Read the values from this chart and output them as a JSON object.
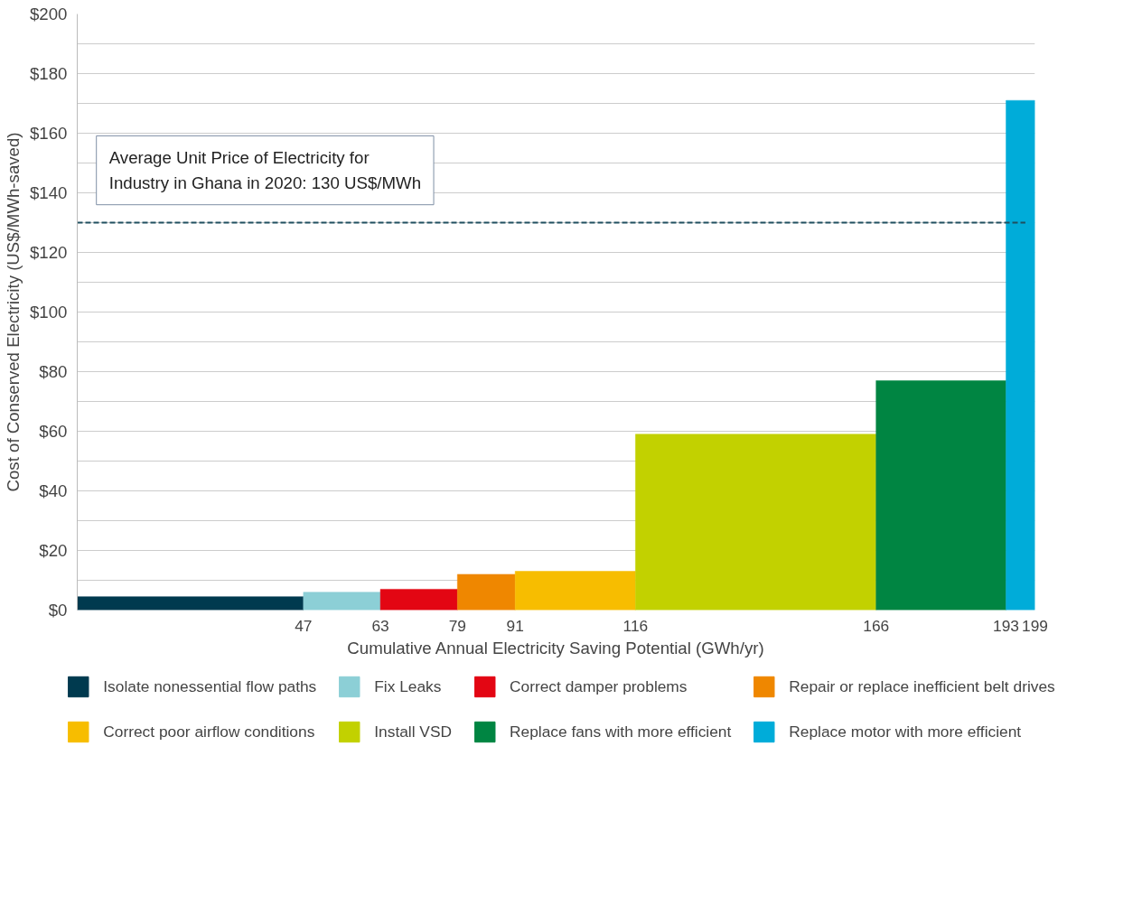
{
  "chart_data": {
    "type": "histogram",
    "xlabel": "Cumulative Annual Electricity Saving Potential (GWh/yr)",
    "ylabel": "Cost of Conserved Electricity (US$/MWh-saved)",
    "bins": [
      0,
      47,
      63,
      79,
      91,
      116,
      166,
      193,
      199
    ],
    "xlim": [
      0,
      199
    ],
    "xticks": [
      47,
      63,
      79,
      91,
      116,
      166,
      193,
      199
    ],
    "ylim": [
      0,
      200
    ],
    "yticks": [
      {
        "value": 0,
        "label": "$0"
      },
      {
        "value": 10,
        "label": null
      },
      {
        "value": 20,
        "label": "$20"
      },
      {
        "value": 30,
        "label": null
      },
      {
        "value": 40,
        "label": "$40"
      },
      {
        "value": 50,
        "label": null
      },
      {
        "value": 60,
        "label": "$60"
      },
      {
        "value": 70,
        "label": null
      },
      {
        "value": 80,
        "label": "$80"
      },
      {
        "value": 90,
        "label": null
      },
      {
        "value": 100,
        "label": "$100"
      },
      {
        "value": 110,
        "label": null
      },
      {
        "value": 120,
        "label": "$120"
      },
      {
        "value": 130,
        "label": null
      },
      {
        "value": 140,
        "label": "$140"
      },
      {
        "value": 150,
        "label": null
      },
      {
        "value": 160,
        "label": "$160"
      },
      {
        "value": 170,
        "label": null
      },
      {
        "value": 180,
        "label": "$180"
      },
      {
        "value": 190,
        "label": null
      },
      {
        "value": 200,
        "label": "$200"
      }
    ],
    "grid": "y",
    "legend": "bottom",
    "series": [
      {
        "name": "Isolate nonessential flow paths",
        "color": "#003a4f",
        "values": [
          4.5,
          null,
          null,
          null,
          null,
          null,
          null,
          null
        ]
      },
      {
        "name": "Fix Leaks",
        "color": "#8ccfd6",
        "values": [
          null,
          6,
          null,
          null,
          null,
          null,
          null,
          null
        ]
      },
      {
        "name": "Correct damper problems",
        "color": "#e30613",
        "values": [
          null,
          null,
          7,
          null,
          null,
          null,
          null,
          null
        ]
      },
      {
        "name": "Repair or replace inefficient belt drives",
        "color": "#ef8700",
        "values": [
          null,
          null,
          null,
          12,
          null,
          null,
          null,
          null
        ]
      },
      {
        "name": "Correct poor airflow conditions",
        "color": "#f7bd00",
        "values": [
          null,
          null,
          null,
          null,
          13,
          null,
          null,
          null
        ]
      },
      {
        "name": "Install VSD",
        "color": "#c2d100",
        "values": [
          null,
          null,
          null,
          null,
          null,
          59,
          null,
          null
        ]
      },
      {
        "name": "Replace fans with more efficient",
        "color": "#008542",
        "values": [
          null,
          null,
          null,
          null,
          null,
          null,
          77,
          null
        ]
      },
      {
        "name": "Replace motor with more efficient",
        "color": "#00acd9",
        "values": [
          null,
          null,
          null,
          null,
          null,
          null,
          null,
          171
        ]
      }
    ],
    "ref_lines": [
      {
        "axis": "y",
        "value": 130,
        "label": "Average Unit Price of Electricity for\nIndustry in Ghana in 2020: 130 US$/MWh",
        "color": "#1f4e5f",
        "line_style": "dashed"
      }
    ]
  }
}
